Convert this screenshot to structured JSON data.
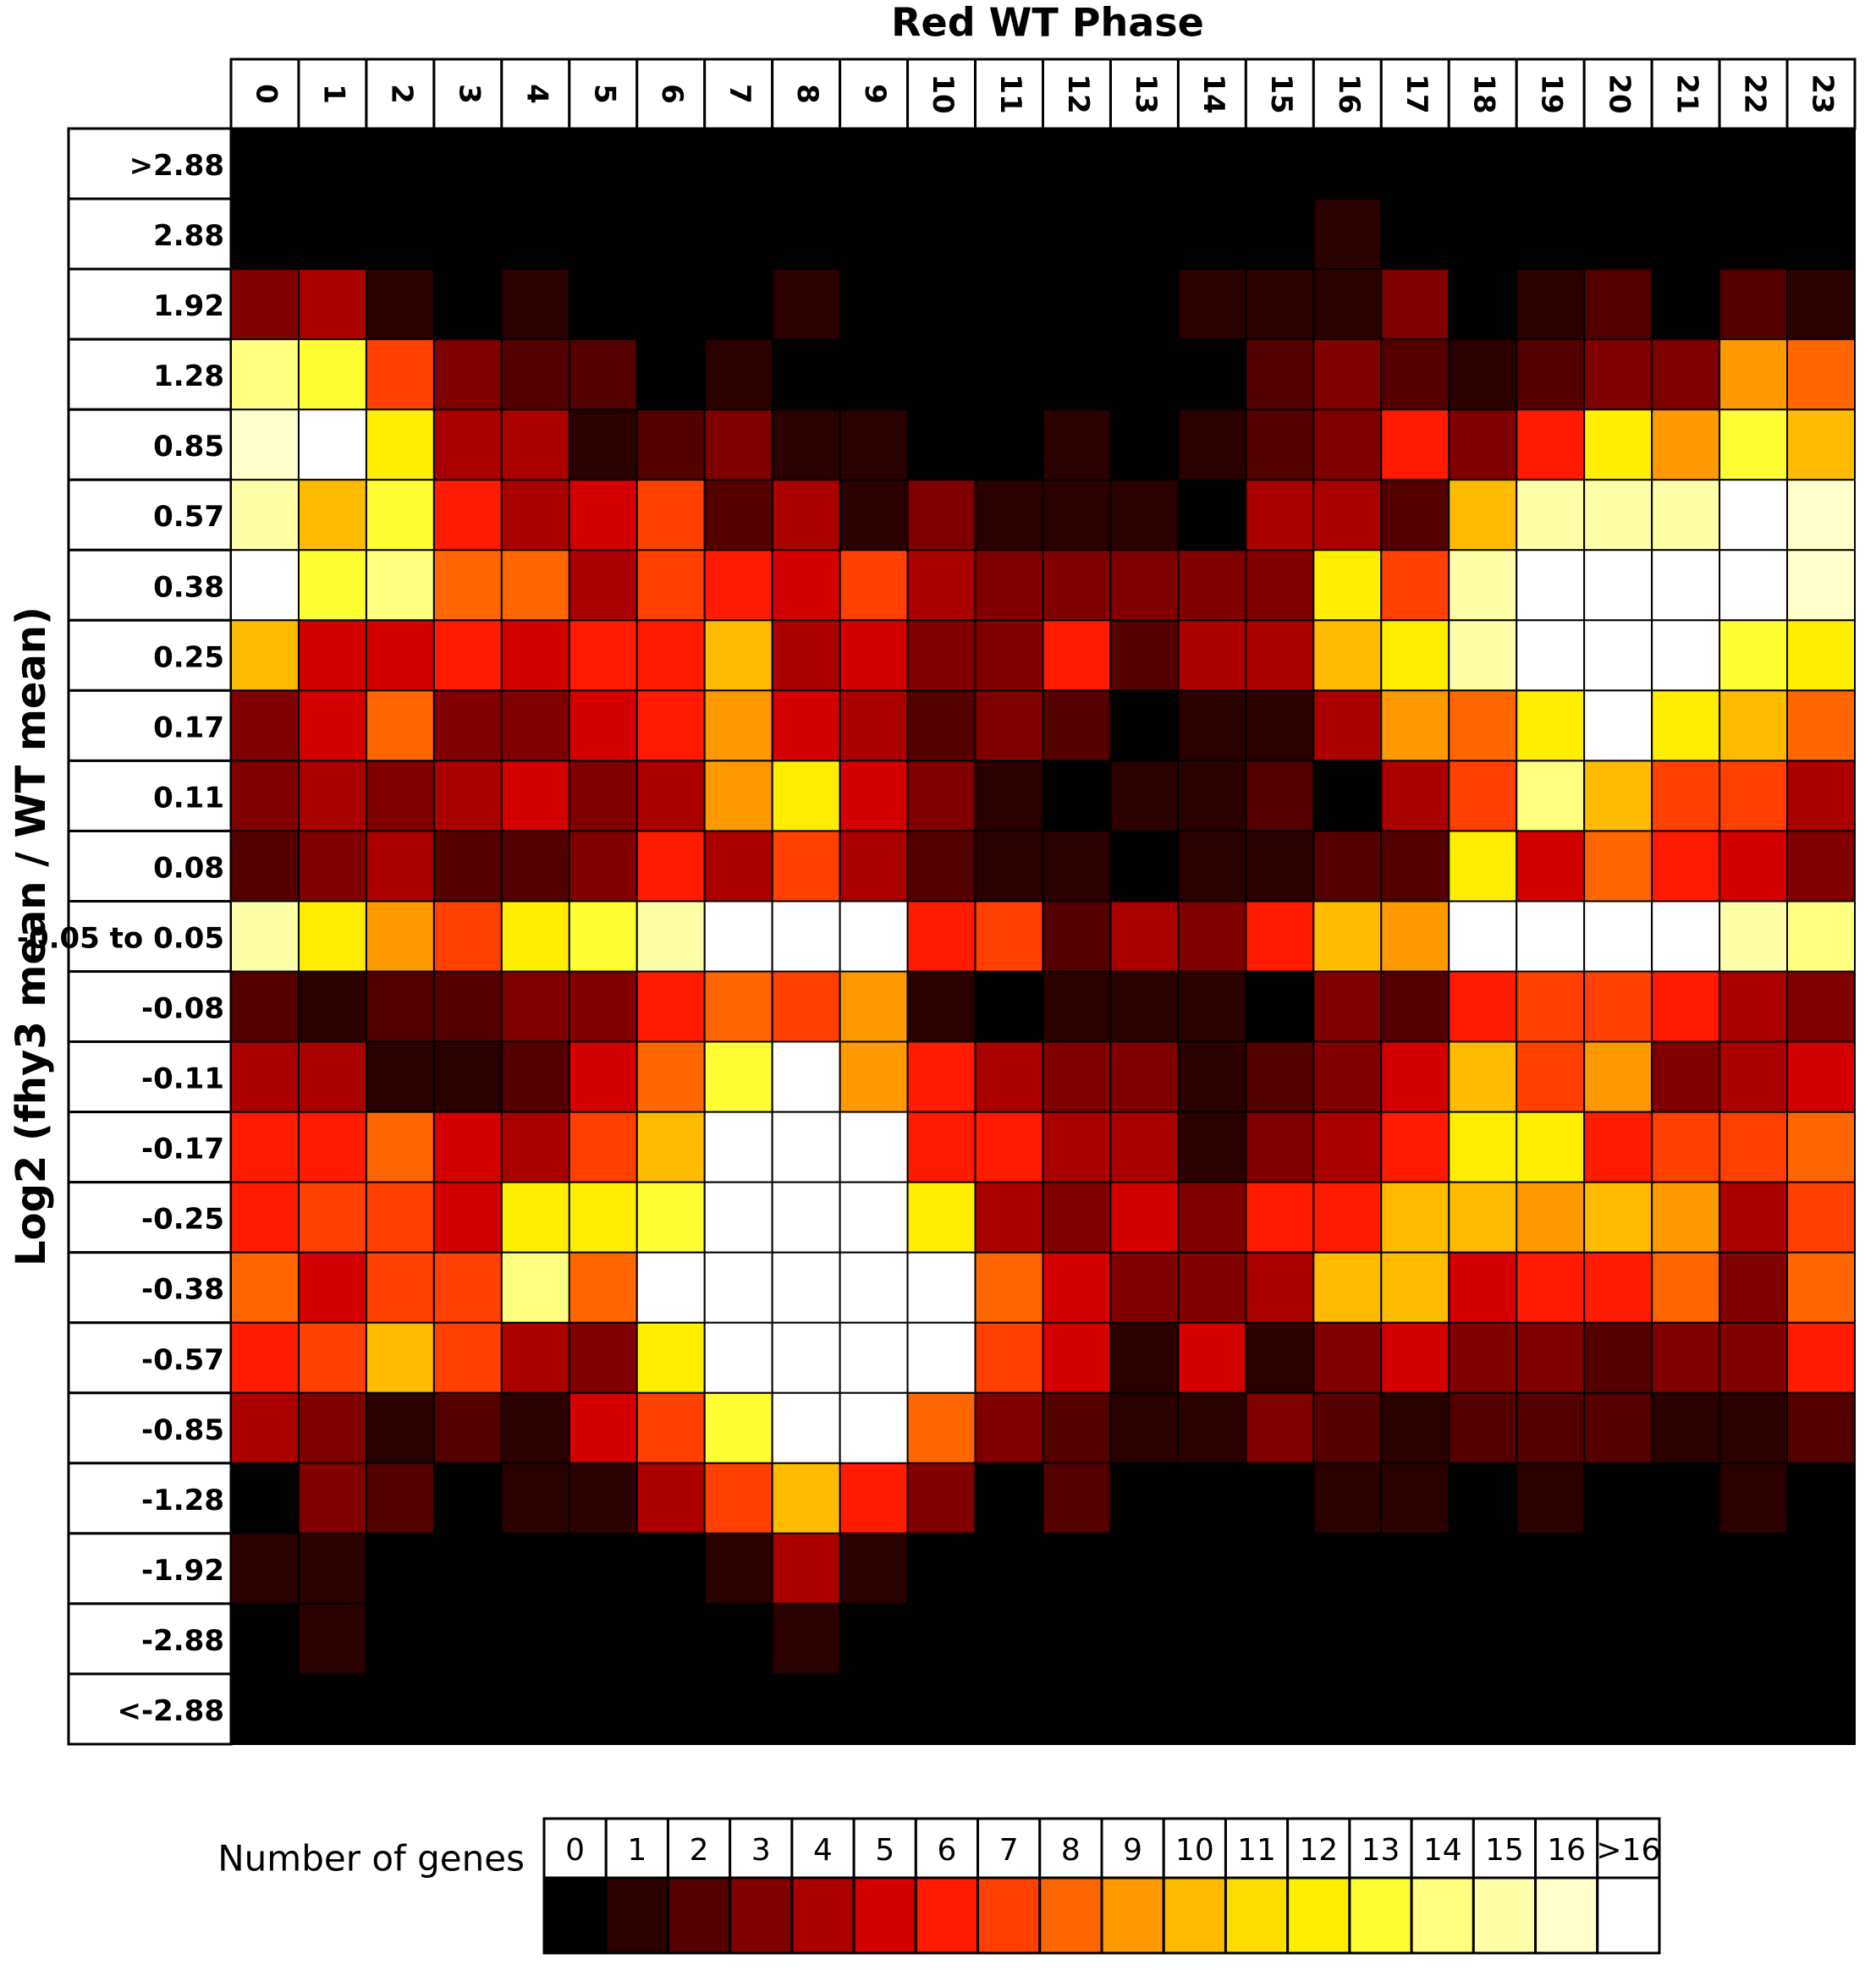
{
  "chart_data": {
    "type": "heatmap",
    "title": "Red WT Phase",
    "ylabel": "Log2 (fhy3 mean / WT mean)",
    "x": [
      "0",
      "1",
      "2",
      "3",
      "4",
      "5",
      "6",
      "7",
      "8",
      "9",
      "10",
      "11",
      "12",
      "13",
      "14",
      "15",
      "16",
      "17",
      "18",
      "19",
      "20",
      "21",
      "22",
      "23"
    ],
    "y": [
      ">2.88",
      "2.88",
      "1.92",
      "1.28",
      "0.85",
      "0.57",
      "0.38",
      "0.25",
      "0.17",
      "0.11",
      "0.08",
      "-0.05 to 0.05",
      "-0.08",
      "-0.11",
      "-0.17",
      "-0.25",
      "-0.38",
      "-0.57",
      "-0.85",
      "-1.28",
      "-1.92",
      "-2.88",
      "<-2.88"
    ],
    "values": [
      [
        0,
        0,
        0,
        0,
        0,
        0,
        0,
        0,
        0,
        0,
        0,
        0,
        0,
        0,
        0,
        0,
        0,
        0,
        0,
        0,
        0,
        0,
        0,
        0
      ],
      [
        0,
        0,
        0,
        0,
        0,
        0,
        0,
        0,
        0,
        0,
        0,
        0,
        0,
        0,
        0,
        0,
        1,
        0,
        0,
        0,
        0,
        0,
        0,
        0
      ],
      [
        3,
        4,
        1,
        0,
        1,
        0,
        0,
        0,
        1,
        0,
        0,
        0,
        0,
        0,
        1,
        1,
        1,
        3,
        0,
        1,
        2,
        0,
        2,
        1
      ],
      [
        14,
        13,
        7,
        3,
        2,
        2,
        0,
        1,
        0,
        0,
        0,
        0,
        0,
        0,
        0,
        2,
        3,
        2,
        1,
        2,
        3,
        3,
        9,
        8
      ],
      [
        16,
        17,
        12,
        4,
        4,
        1,
        2,
        3,
        1,
        1,
        0,
        0,
        1,
        0,
        1,
        2,
        3,
        6,
        3,
        6,
        12,
        9,
        13,
        10
      ],
      [
        15,
        10,
        13,
        6,
        4,
        5,
        7,
        2,
        4,
        1,
        3,
        1,
        1,
        1,
        0,
        4,
        4,
        2,
        10,
        15,
        15,
        15,
        17,
        16
      ],
      [
        17,
        13,
        14,
        8,
        8,
        4,
        7,
        6,
        5,
        7,
        4,
        3,
        3,
        3,
        3,
        3,
        12,
        7,
        15,
        17,
        17,
        17,
        17,
        16
      ],
      [
        10,
        5,
        5,
        6,
        5,
        6,
        6,
        10,
        4,
        5,
        3,
        3,
        6,
        2,
        4,
        4,
        10,
        12,
        15,
        17,
        17,
        17,
        13,
        12
      ],
      [
        3,
        5,
        8,
        3,
        3,
        5,
        6,
        9,
        5,
        4,
        2,
        3,
        2,
        0,
        1,
        1,
        4,
        9,
        8,
        12,
        17,
        12,
        10,
        8
      ],
      [
        3,
        4,
        3,
        4,
        5,
        3,
        4,
        9,
        12,
        5,
        3,
        1,
        0,
        1,
        1,
        2,
        0,
        4,
        7,
        14,
        10,
        7,
        7,
        4
      ],
      [
        2,
        3,
        4,
        2,
        2,
        3,
        6,
        4,
        7,
        4,
        2,
        1,
        1,
        0,
        1,
        1,
        2,
        2,
        12,
        5,
        8,
        6,
        5,
        3
      ],
      [
        15,
        12,
        9,
        7,
        12,
        13,
        15,
        17,
        17,
        17,
        6,
        7,
        2,
        4,
        3,
        6,
        10,
        9,
        17,
        17,
        17,
        17,
        15,
        14
      ],
      [
        2,
        1,
        2,
        2,
        3,
        3,
        6,
        8,
        7,
        9,
        1,
        0,
        1,
        1,
        1,
        0,
        3,
        2,
        6,
        7,
        7,
        6,
        4,
        3
      ],
      [
        4,
        4,
        1,
        1,
        2,
        5,
        8,
        13,
        17,
        9,
        6,
        4,
        3,
        3,
        1,
        2,
        3,
        5,
        10,
        7,
        9,
        3,
        4,
        5
      ],
      [
        6,
        6,
        8,
        5,
        4,
        7,
        10,
        17,
        17,
        17,
        6,
        6,
        4,
        4,
        1,
        3,
        4,
        6,
        12,
        12,
        6,
        7,
        7,
        8
      ],
      [
        6,
        7,
        7,
        5,
        12,
        12,
        13,
        17,
        17,
        17,
        12,
        4,
        3,
        5,
        3,
        6,
        6,
        10,
        10,
        9,
        10,
        9,
        4,
        7
      ],
      [
        8,
        5,
        7,
        7,
        14,
        8,
        17,
        17,
        17,
        17,
        17,
        8,
        5,
        3,
        3,
        4,
        10,
        10,
        5,
        6,
        6,
        8,
        3,
        8
      ],
      [
        6,
        7,
        10,
        7,
        4,
        3,
        12,
        17,
        17,
        17,
        17,
        7,
        5,
        1,
        5,
        1,
        3,
        5,
        3,
        3,
        2,
        3,
        3,
        6
      ],
      [
        4,
        3,
        1,
        2,
        1,
        5,
        7,
        13,
        17,
        17,
        8,
        3,
        2,
        1,
        1,
        3,
        2,
        1,
        2,
        2,
        2,
        1,
        1,
        2
      ],
      [
        0,
        3,
        2,
        0,
        1,
        1,
        4,
        7,
        10,
        6,
        3,
        0,
        2,
        0,
        0,
        0,
        1,
        1,
        0,
        1,
        0,
        0,
        1,
        0
      ],
      [
        1,
        1,
        0,
        0,
        0,
        0,
        0,
        1,
        4,
        1,
        0,
        0,
        0,
        0,
        0,
        0,
        0,
        0,
        0,
        0,
        0,
        0,
        0,
        0
      ],
      [
        0,
        1,
        0,
        0,
        0,
        0,
        0,
        0,
        1,
        0,
        0,
        0,
        0,
        0,
        0,
        0,
        0,
        0,
        0,
        0,
        0,
        0,
        0,
        0
      ],
      [
        0,
        0,
        0,
        0,
        0,
        0,
        0,
        0,
        0,
        0,
        0,
        0,
        0,
        0,
        0,
        0,
        0,
        0,
        0,
        0,
        0,
        0,
        0,
        0
      ]
    ],
    "legend_title": "Number of genes",
    "legend_labels": [
      "0",
      "1",
      "2",
      "3",
      "4",
      "5",
      "6",
      "7",
      "8",
      "9",
      "10",
      "11",
      "12",
      "13",
      "14",
      "15",
      "16",
      ">16"
    ],
    "colors": [
      "#000000",
      "#2a0000",
      "#550000",
      "#800000",
      "#aa0000",
      "#d40000",
      "#ff1a00",
      "#ff4000",
      "#ff6600",
      "#ff9900",
      "#ffbb00",
      "#ffdd00",
      "#ffee00",
      "#ffff33",
      "#ffff80",
      "#ffffaa",
      "#ffffcc",
      "#ffffff"
    ]
  }
}
